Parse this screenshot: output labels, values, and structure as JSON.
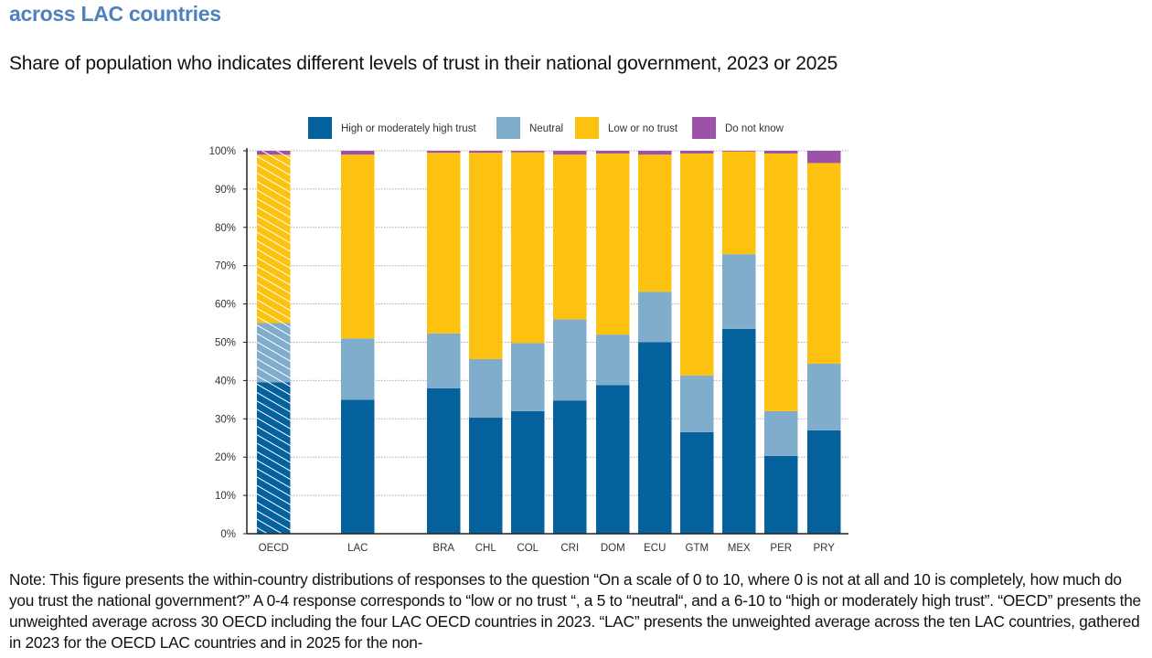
{
  "title": "across LAC countries",
  "subtitle": "Share of population who indicates different levels of trust in their national government, 2023 or 2025",
  "note": "Note: This figure presents the within-country distributions of responses to the question “On a scale of 0 to 10, where 0 is not at all and 10 is completely, how much do you trust the national government?” A 0-4 response corresponds to “low or no trust “, a 5 to “neutral“, and a 6-10 to “high or moderately high trust”. “OECD” presents the unweighted average across 30 OECD including the four LAC OECD countries in 2023. “LAC” presents the unweighted average across the ten LAC countries, gathered in 2023 for the OECD LAC countries and in 2025 for the non-",
  "chart_data": {
    "type": "bar",
    "stacked": true,
    "ylim": [
      0,
      100
    ],
    "yticks": [
      "0%",
      "10%",
      "20%",
      "30%",
      "40%",
      "50%",
      "60%",
      "70%",
      "80%",
      "90%",
      "100%"
    ],
    "grid": true,
    "legend_placement": "top",
    "categories": [
      "OECD",
      "LAC",
      "BRA",
      "CHL",
      "COL",
      "CRI",
      "DOM",
      "ECU",
      "GTM",
      "MEX",
      "PER",
      "PRY"
    ],
    "hatched_categories": [
      "OECD"
    ],
    "series": [
      {
        "name": "High or moderately high trust",
        "color": "#05619c",
        "values": [
          39.5,
          35,
          38,
          30.3,
          32,
          34.8,
          38.8,
          50,
          26.5,
          53.5,
          20.3,
          27
        ]
      },
      {
        "name": "Neutral",
        "color": "#7fadcb",
        "values": [
          15.5,
          16,
          14.3,
          15.3,
          17.8,
          21.2,
          13.2,
          13.2,
          14.8,
          19.5,
          11.7,
          17.4
        ]
      },
      {
        "name": "Low or no trust",
        "color": "#fdc20f",
        "values": [
          44,
          48,
          47.2,
          53.9,
          49.8,
          43,
          47.3,
          35.8,
          58,
          26.8,
          67.3,
          52.4
        ]
      },
      {
        "name": "Do not know",
        "color": "#9c52a8",
        "values": [
          1,
          1,
          0.5,
          0.5,
          0.4,
          1,
          0.7,
          1,
          0.7,
          0.2,
          0.7,
          3.2
        ]
      }
    ]
  }
}
